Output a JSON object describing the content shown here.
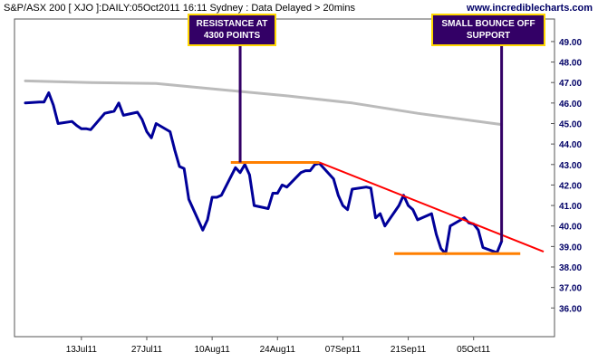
{
  "header": {
    "title": "S&P/ASX 200 [ XJO ]:DAILY:05Oct2011 16:11 Sydney : Data Delayed > 20mins",
    "site": "www.incrediblecharts.com"
  },
  "colors": {
    "price": "#000099",
    "moving_average": "#bbbbbb",
    "resistance": "#ff7f00",
    "support": "#ff7f00",
    "trendline": "#ff0000",
    "annotation_bg": "#330066",
    "annotation_border": "#ffd700",
    "annotation_text": "#ffffff",
    "axis_text": "#000066"
  },
  "chart_data": {
    "type": "line",
    "title": "S&P/ASX 200 [ XJO ]:DAILY:05Oct2011 16:11 Sydney : Data Delayed > 20mins",
    "xlabel": "",
    "ylabel": "",
    "ylim": [
      34.6,
      50.1
    ],
    "y_ticks": [
      "36.00",
      "37.00",
      "38.00",
      "39.00",
      "40.00",
      "41.00",
      "42.00",
      "43.00",
      "44.00",
      "45.00",
      "46.00",
      "47.00",
      "48.00",
      "49.00"
    ],
    "x_ticks": [
      {
        "label": "13Jul11",
        "x": "2011-07-13"
      },
      {
        "label": "27Jul11",
        "x": "2011-07-27"
      },
      {
        "label": "10Aug11",
        "x": "2011-08-10"
      },
      {
        "label": "24Aug11",
        "x": "2011-08-24"
      },
      {
        "label": "07Sep11",
        "x": "2011-09-07"
      },
      {
        "label": "21Sep11",
        "x": "2011-09-21"
      },
      {
        "label": "05Oct11",
        "x": "2011-10-05"
      }
    ],
    "x_range": [
      "2011-07-01",
      "2011-10-20"
    ],
    "grid": false,
    "series": [
      {
        "key": "price",
        "points": [
          [
            "2011-07-01",
            46.0
          ],
          [
            "2011-07-04",
            46.05
          ],
          [
            "2011-07-05",
            46.05
          ],
          [
            "2011-07-06",
            46.5
          ],
          [
            "2011-07-07",
            45.9
          ],
          [
            "2011-07-08",
            45.0
          ],
          [
            "2011-07-11",
            45.1
          ],
          [
            "2011-07-12",
            44.9
          ],
          [
            "2011-07-13",
            44.75
          ],
          [
            "2011-07-14",
            44.75
          ],
          [
            "2011-07-15",
            44.7
          ],
          [
            "2011-07-18",
            45.5
          ],
          [
            "2011-07-19",
            45.55
          ],
          [
            "2011-07-20",
            45.6
          ],
          [
            "2011-07-21",
            46.0
          ],
          [
            "2011-07-22",
            45.4
          ],
          [
            "2011-07-25",
            45.55
          ],
          [
            "2011-07-26",
            45.2
          ],
          [
            "2011-07-27",
            44.6
          ],
          [
            "2011-07-28",
            44.3
          ],
          [
            "2011-07-29",
            45.0
          ],
          [
            "2011-08-01",
            44.6
          ],
          [
            "2011-08-02",
            43.7
          ],
          [
            "2011-08-03",
            42.9
          ],
          [
            "2011-08-04",
            42.8
          ],
          [
            "2011-08-05",
            41.3
          ],
          [
            "2011-08-08",
            39.8
          ],
          [
            "2011-08-09",
            40.3
          ],
          [
            "2011-08-10",
            41.4
          ],
          [
            "2011-08-11",
            41.4
          ],
          [
            "2011-08-12",
            41.5
          ],
          [
            "2011-08-15",
            42.85
          ],
          [
            "2011-08-16",
            42.6
          ],
          [
            "2011-08-17",
            43.0
          ],
          [
            "2011-08-18",
            42.5
          ],
          [
            "2011-08-19",
            41.0
          ],
          [
            "2011-08-22",
            40.85
          ],
          [
            "2011-08-23",
            41.6
          ],
          [
            "2011-08-24",
            41.6
          ],
          [
            "2011-08-25",
            42.0
          ],
          [
            "2011-08-26",
            41.9
          ],
          [
            "2011-08-29",
            42.6
          ],
          [
            "2011-08-30",
            42.7
          ],
          [
            "2011-08-31",
            42.7
          ],
          [
            "2011-09-01",
            43.0
          ],
          [
            "2011-09-02",
            43.05
          ],
          [
            "2011-09-05",
            42.3
          ],
          [
            "2011-09-06",
            41.5
          ],
          [
            "2011-09-07",
            41.0
          ],
          [
            "2011-09-08",
            40.8
          ],
          [
            "2011-09-09",
            41.8
          ],
          [
            "2011-09-12",
            41.9
          ],
          [
            "2011-09-13",
            41.85
          ],
          [
            "2011-09-14",
            40.4
          ],
          [
            "2011-09-15",
            40.6
          ],
          [
            "2011-09-16",
            40.0
          ],
          [
            "2011-09-19",
            41.0
          ],
          [
            "2011-09-20",
            41.5
          ],
          [
            "2011-09-21",
            41.0
          ],
          [
            "2011-09-22",
            40.8
          ],
          [
            "2011-09-23",
            40.3
          ],
          [
            "2011-09-26",
            40.6
          ],
          [
            "2011-09-27",
            39.6
          ],
          [
            "2011-09-28",
            38.9
          ],
          [
            "2011-09-29",
            38.65
          ],
          [
            "2011-09-30",
            40.0
          ],
          [
            "2011-10-03",
            40.4
          ],
          [
            "2011-10-04",
            40.15
          ],
          [
            "2011-10-05",
            40.1
          ],
          [
            "2011-10-06",
            39.8
          ],
          [
            "2011-10-07",
            38.95
          ],
          [
            "2011-10-10",
            38.7
          ],
          [
            "2011-10-11",
            39.25
          ]
        ]
      },
      {
        "key": "moving_average",
        "points": [
          [
            "2011-07-01",
            47.08
          ],
          [
            "2011-07-15",
            47.0
          ],
          [
            "2011-07-29",
            46.95
          ],
          [
            "2011-08-12",
            46.65
          ],
          [
            "2011-08-26",
            46.35
          ],
          [
            "2011-09-09",
            46.0
          ],
          [
            "2011-09-23",
            45.5
          ],
          [
            "2011-10-11",
            44.95
          ]
        ]
      }
    ],
    "resistance_line": {
      "x": [
        "2011-08-14",
        "2011-09-02"
      ],
      "y": 43.1
    },
    "support_line": {
      "x": [
        "2011-09-18",
        "2011-10-15"
      ],
      "y": 38.65
    },
    "downtrend_line": {
      "x": [
        "2011-09-02",
        "2011-10-20"
      ],
      "y": [
        43.1,
        38.75
      ]
    },
    "annotations": [
      {
        "key": "resistance",
        "lines": [
          "RESISTANCE AT",
          "4300 POINTS"
        ],
        "pointer": {
          "x": "2011-08-16",
          "y": 43.1
        }
      },
      {
        "key": "bounce",
        "lines": [
          "SMALL BOUNCE OFF",
          "SUPPORT"
        ],
        "pointer": {
          "x": "2011-10-11",
          "y": 39.25
        }
      }
    ]
  }
}
